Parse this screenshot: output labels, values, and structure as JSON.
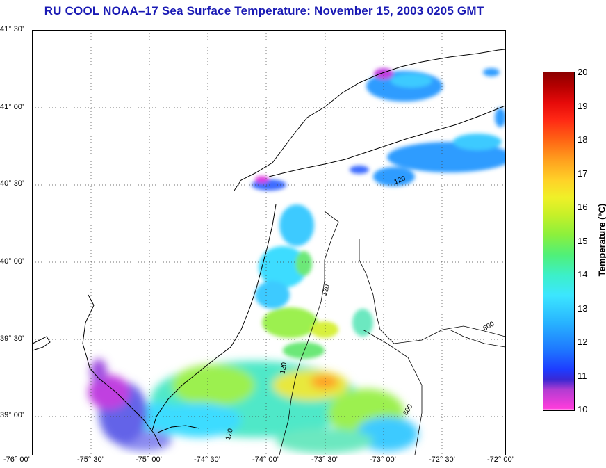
{
  "title": "RU COOL  NOAA–17  Sea Surface Temperature:  November 15, 2003 0205 GMT",
  "lat_ticks": [
    "41° 30’",
    "41° 00’",
    "40° 30’",
    "40° 00’",
    "39° 30’",
    "39° 00’"
  ],
  "lon_ticks": [
    "-76° 00’",
    "-75° 30’",
    "-75° 00’",
    "-74° 30’",
    "-74° 00’",
    "-73° 30’",
    "-73° 00’",
    "-72° 30’",
    "-72° 00’"
  ],
  "contour_labels": [
    "120",
    "120",
    "120",
    "600",
    "600",
    "120"
  ],
  "colorbar": {
    "title": "Temperature (°C)",
    "ticks": [
      "20",
      "19",
      "18",
      "17",
      "16",
      "15",
      "14",
      "13",
      "12",
      "11",
      "10"
    ],
    "min": 10,
    "max": 20
  }
}
